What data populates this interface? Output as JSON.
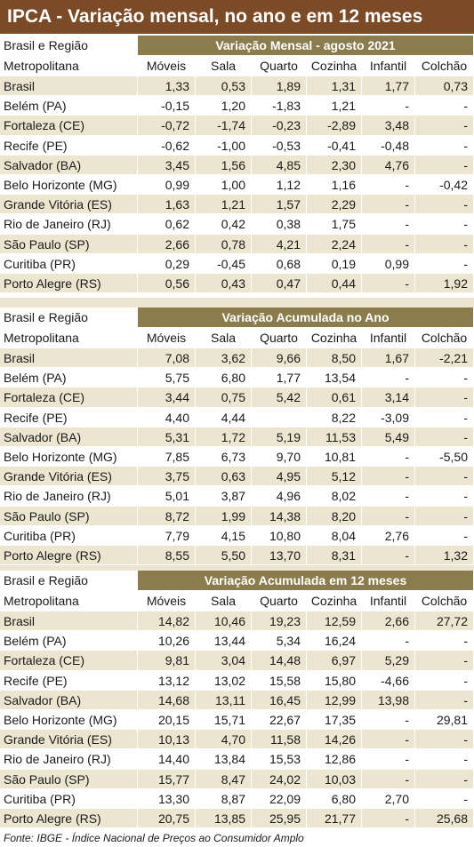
{
  "title": "IPCA - Variação mensal, no ano e em 12 meses",
  "sections": [
    {
      "header_left": [
        "Brasil e Região",
        "Metropolitana"
      ],
      "heading": "Variação Mensal - agosto 2021",
      "columns": [
        "Móveis",
        "Sala",
        "Quarto",
        "Cozinha",
        "Infantil",
        "Colchão"
      ],
      "rows": [
        {
          "region": "Brasil",
          "values": [
            "1,33",
            "0,53",
            "1,89",
            "1,31",
            "1,77",
            "0,73"
          ]
        },
        {
          "region": "Belém (PA)",
          "values": [
            "-0,15",
            "1,20",
            "-1,83",
            "1,21",
            "-",
            "-"
          ]
        },
        {
          "region": "Fortaleza (CE)",
          "values": [
            "-0,72",
            "-1,74",
            "-0,23",
            "-2,89",
            "3,48",
            "-"
          ]
        },
        {
          "region": "Recife (PE)",
          "values": [
            "-0,62",
            "-1,00",
            "-0,53",
            "-0,41",
            "-0,48",
            "-"
          ]
        },
        {
          "region": "Salvador (BA)",
          "values": [
            "3,45",
            "1,56",
            "4,85",
            "2,30",
            "4,76",
            "-"
          ]
        },
        {
          "region": "Belo Horizonte (MG)",
          "values": [
            "0,99",
            "1,00",
            "1,12",
            "1,16",
            "-",
            "-0,42"
          ]
        },
        {
          "region": "Grande Vitória (ES)",
          "values": [
            "1,63",
            "1,21",
            "1,57",
            "2,29",
            "-",
            "-"
          ]
        },
        {
          "region": "Rio de Janeiro (RJ)",
          "values": [
            "0,62",
            "0,42",
            "0,38",
            "1,75",
            "-",
            "-"
          ]
        },
        {
          "region": "São Paulo (SP)",
          "values": [
            "2,66",
            "0,78",
            "4,21",
            "2,24",
            "-",
            "-"
          ]
        },
        {
          "region": "Curitiba (PR)",
          "values": [
            "0,29",
            "-0,45",
            "0,68",
            "0,19",
            "0,99",
            "-"
          ]
        },
        {
          "region": "Porto Alegre (RS)",
          "values": [
            "0,56",
            "0,43",
            "0,47",
            "0,44",
            "-",
            "1,92"
          ]
        }
      ]
    },
    {
      "header_left": [
        "Brasil e Região",
        "Metropolitana"
      ],
      "heading": "Variação Acumulada no Ano",
      "columns": [
        "Móveis",
        "Sala",
        "Quarto",
        "Cozinha",
        "Infantil",
        "Colchão"
      ],
      "rows": [
        {
          "region": "Brasil",
          "values": [
            "7,08",
            "3,62",
            "9,66",
            "8,50",
            "1,67",
            "-2,21"
          ]
        },
        {
          "region": "Belém (PA)",
          "values": [
            "5,75",
            "6,80",
            "1,77",
            "13,54",
            "-",
            "-"
          ]
        },
        {
          "region": "Fortaleza (CE)",
          "values": [
            "3,44",
            "0,75",
            "5,42",
            "0,61",
            "3,14",
            "-"
          ]
        },
        {
          "region": "Recife (PE)",
          "values": [
            "4,40",
            "4,44",
            null,
            "8,22",
            "-3,09",
            "-"
          ]
        },
        {
          "region": "Salvador (BA)",
          "values": [
            "5,31",
            "1,72",
            "5,19",
            "11,53",
            "5,49",
            "-"
          ]
        },
        {
          "region": "Belo Horizonte (MG)",
          "values": [
            "7,85",
            "6,73",
            "9,70",
            "10,81",
            "-",
            "-5,50"
          ]
        },
        {
          "region": "Grande Vitória (ES)",
          "values": [
            "3,75",
            "0,63",
            "4,95",
            "5,12",
            "-",
            "-"
          ]
        },
        {
          "region": "Rio de Janeiro (RJ)",
          "values": [
            "5,01",
            "3,87",
            "4,96",
            "8,02",
            "-",
            "-"
          ]
        },
        {
          "region": "São Paulo (SP)",
          "values": [
            "8,72",
            "1,99",
            "14,38",
            "8,20",
            "-",
            "-"
          ]
        },
        {
          "region": "Curitiba (PR)",
          "values": [
            "7,79",
            "4,15",
            "10,80",
            "8,04",
            "2,76",
            "-"
          ]
        },
        {
          "region": "Porto Alegre (RS)",
          "values": [
            "8,55",
            "5,50",
            "13,70",
            "8,31",
            "-",
            "1,32"
          ]
        }
      ]
    },
    {
      "header_left": [
        "Brasil e Região",
        "Metropolitana"
      ],
      "heading": "Variação Acumulada em 12 meses",
      "columns": [
        "Móveis",
        "Sala",
        "Quarto",
        "Cozinha",
        "Infantil",
        "Colchão"
      ],
      "rows": [
        {
          "region": "Brasil",
          "values": [
            "14,82",
            "10,46",
            "19,23",
            "12,59",
            "2,66",
            "27,72"
          ]
        },
        {
          "region": "Belém (PA)",
          "values": [
            "10,26",
            "13,44",
            "5,34",
            "16,24",
            "-",
            "-"
          ]
        },
        {
          "region": "Fortaleza (CE)",
          "values": [
            "9,81",
            "3,04",
            "14,48",
            "6,97",
            "5,29",
            "-"
          ]
        },
        {
          "region": "Recife (PE)",
          "values": [
            "13,12",
            "13,02",
            "15,58",
            "15,80",
            "-4,66",
            "-"
          ]
        },
        {
          "region": "Salvador (BA)",
          "values": [
            "14,68",
            "13,11",
            "16,45",
            "12,99",
            "13,98",
            "-"
          ]
        },
        {
          "region": "Belo Horizonte (MG)",
          "values": [
            "20,15",
            "15,71",
            "22,67",
            "17,35",
            "-",
            "29,81"
          ]
        },
        {
          "region": "Grande Vitória (ES)",
          "values": [
            "10,13",
            "4,70",
            "11,58",
            "14,26",
            "-",
            "-"
          ]
        },
        {
          "region": "Rio de Janeiro (RJ)",
          "values": [
            "14,40",
            "13,84",
            "15,53",
            "12,86",
            "-",
            "-"
          ]
        },
        {
          "region": "São Paulo (SP)",
          "values": [
            "15,77",
            "8,47",
            "24,02",
            "10,03",
            "-",
            "-"
          ]
        },
        {
          "region": "Curitiba (PR)",
          "values": [
            "13,30",
            "8,87",
            "22,09",
            "6,80",
            "2,70",
            "-"
          ]
        },
        {
          "region": "Porto Alegre (RS)",
          "values": [
            "20,75",
            "13,85",
            "25,95",
            "21,77",
            "-",
            "25,68"
          ]
        }
      ]
    }
  ],
  "footer": "Fonte: IBGE - Índice Nacional de Preços ao Consumidor Amplo"
}
